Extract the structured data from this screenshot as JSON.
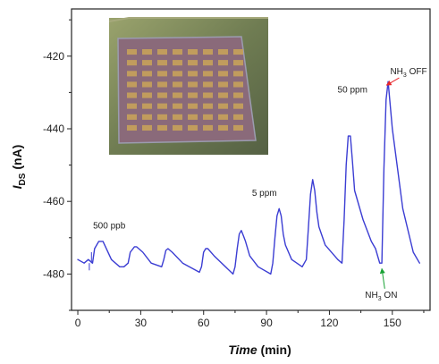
{
  "chart_data": {
    "type": "line",
    "title": "",
    "xlabel": "Time (min)",
    "ylabel": "IDS (nA)",
    "xlabel_parts": {
      "italic": "Time",
      "rest": " (min)"
    },
    "ylabel_parts": {
      "main": "I",
      "sub": "DS",
      "rest": " (nA)"
    },
    "xlim": [
      -3,
      168
    ],
    "ylim": [
      -490,
      -407
    ],
    "x_ticks": [
      0,
      30,
      60,
      90,
      120,
      150
    ],
    "y_ticks": [
      -480,
      -460,
      -440,
      -420
    ],
    "grid": false,
    "series": [
      {
        "color": "#3b3dd3",
        "x": [
          0,
          3,
          5,
          7,
          8,
          10,
          12,
          16,
          20,
          22,
          24,
          25,
          27,
          28,
          31,
          35,
          40,
          41,
          42,
          43,
          44,
          45,
          50,
          58,
          59,
          60,
          61,
          62,
          65,
          74,
          75,
          76,
          77,
          78,
          79,
          80,
          82,
          86,
          92,
          93,
          94,
          95,
          96,
          97,
          98,
          99,
          102,
          107,
          109,
          110,
          111,
          112,
          113,
          114,
          115,
          118,
          124,
          126,
          127,
          128,
          129,
          130,
          131,
          132,
          136,
          140,
          142,
          144,
          145,
          146,
          147,
          148,
          150,
          155,
          160,
          163
        ],
        "y": [
          -476,
          -477,
          -476,
          -477,
          -473,
          -471,
          -471,
          -476,
          -478,
          -478,
          -477,
          -474,
          -472.5,
          -472.5,
          -474,
          -477,
          -478,
          -476,
          -473.5,
          -473,
          -473.5,
          -474,
          -477,
          -479.5,
          -478,
          -474,
          -473,
          -473,
          -475,
          -480,
          -478,
          -473,
          -469,
          -468,
          -469.5,
          -471,
          -475,
          -478,
          -480,
          -477,
          -470,
          -464,
          -462,
          -464,
          -469,
          -472,
          -476,
          -478,
          -476,
          -467,
          -458,
          -454,
          -457,
          -463,
          -467,
          -472,
          -476,
          -477,
          -465,
          -450,
          -442,
          -442,
          -449,
          -457,
          -465,
          -471,
          -473,
          -477,
          -477,
          -451,
          -432,
          -427,
          -440,
          -462,
          -474,
          -477
        ],
        "spikes": [
          {
            "x": 5.5,
            "y": -479
          },
          {
            "x": 6.5,
            "y": -474
          }
        ]
      }
    ],
    "annotations": [
      {
        "text": "500 ppb",
        "x": 15,
        "y": -467.5
      },
      {
        "text": "5 ppm",
        "x": 89,
        "y": -458.5
      },
      {
        "text": "50 ppm",
        "x": 131,
        "y": -430
      }
    ],
    "arrow_annotations": [
      {
        "text_main": "NH",
        "text_sub": "3",
        "text_rest": " OFF",
        "color": "#e8262b",
        "text_x": 149,
        "text_y": -425,
        "tip_x": 147.2,
        "tip_y": -428
      },
      {
        "text_main": "NH",
        "text_sub": "3",
        "text_rest": " ON",
        "color": "#18a234",
        "text_x": 137,
        "text_y": -486.5,
        "tip_x": 145,
        "tip_y": -478.5
      }
    ],
    "inset": {
      "description_icon": "sensor-array-photo",
      "rows": 8,
      "cols": 8,
      "background_color": "#6c7a4f",
      "substrate_color": "#8a6a7a",
      "pad_color": "#c7a25a",
      "frame_color": "#9b9caf"
    }
  }
}
